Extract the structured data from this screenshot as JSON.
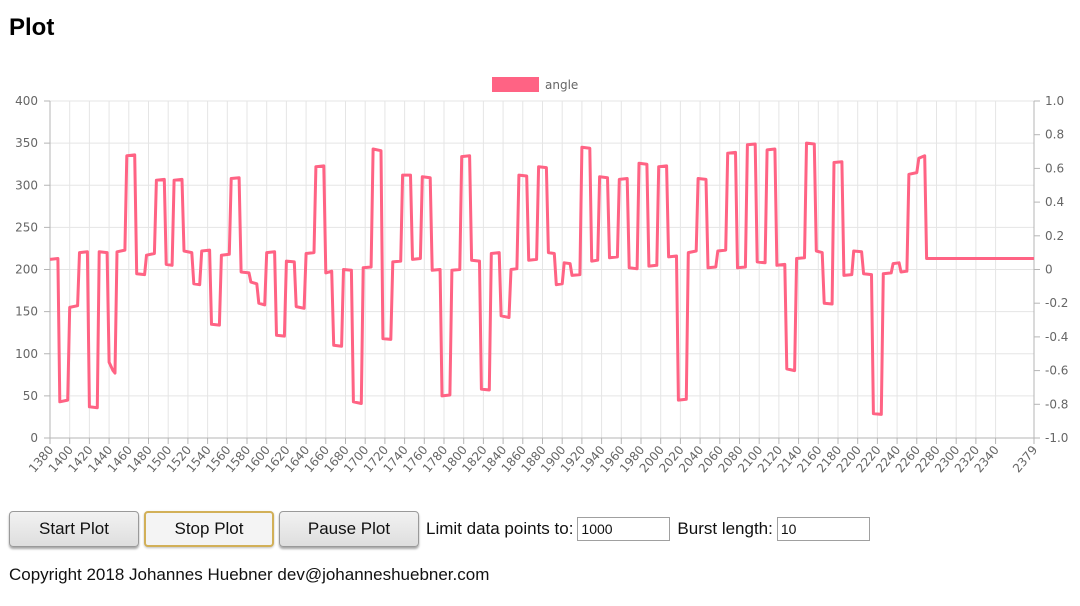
{
  "page": {
    "title": "Plot",
    "copyright": "Copyright 2018 Johannes Huebner dev@johanneshuebner.com"
  },
  "controls": {
    "start_label": "Start Plot",
    "stop_label": "Stop Plot",
    "pause_label": "Pause Plot",
    "limit_label": "Limit data points to:",
    "limit_value": "1000",
    "burst_label": "Burst length:",
    "burst_value": "10"
  },
  "colors": {
    "series": "#ff6384",
    "grid": "#e5e5e5",
    "axis": "#b5b5b5",
    "tick_text": "#666666"
  },
  "chart_data": {
    "type": "line",
    "legend": [
      "angle"
    ],
    "legend_position": "top-center",
    "grid": true,
    "xlabel": "",
    "ylabel": "",
    "xlim": [
      1380,
      2379
    ],
    "x_ticks": [
      1380,
      1400,
      1420,
      1440,
      1460,
      1480,
      1500,
      1520,
      1540,
      1560,
      1580,
      1600,
      1620,
      1640,
      1660,
      1680,
      1700,
      1720,
      1740,
      1760,
      1780,
      1800,
      1820,
      1840,
      1860,
      1880,
      1900,
      1920,
      1940,
      1960,
      1980,
      2000,
      2020,
      2040,
      2060,
      2080,
      2100,
      2120,
      2140,
      2160,
      2180,
      2200,
      2220,
      2240,
      2260,
      2280,
      2300,
      2320,
      2340,
      2379
    ],
    "y_left": {
      "min": 0,
      "max": 400,
      "ticks": [
        0,
        50,
        100,
        150,
        200,
        250,
        300,
        350,
        400
      ]
    },
    "y_right": {
      "min": -1.0,
      "max": 1.0,
      "ticks": [
        "-1.0",
        "-0.8",
        "-0.6",
        "-0.4",
        "-0.2",
        "0",
        "0.2",
        "0.4",
        "0.6",
        "0.8",
        "1.0"
      ]
    },
    "series": [
      {
        "name": "angle",
        "axis": "left",
        "points": [
          [
            1380,
            212
          ],
          [
            1388,
            213
          ],
          [
            1390,
            43
          ],
          [
            1398,
            45
          ],
          [
            1400,
            155
          ],
          [
            1408,
            157
          ],
          [
            1410,
            220
          ],
          [
            1418,
            221
          ],
          [
            1420,
            37
          ],
          [
            1428,
            36
          ],
          [
            1430,
            221
          ],
          [
            1438,
            220
          ],
          [
            1440,
            90
          ],
          [
            1444,
            80
          ],
          [
            1446,
            77
          ],
          [
            1448,
            221
          ],
          [
            1456,
            223
          ],
          [
            1458,
            335
          ],
          [
            1466,
            336
          ],
          [
            1468,
            195
          ],
          [
            1476,
            194
          ],
          [
            1478,
            217
          ],
          [
            1486,
            219
          ],
          [
            1488,
            306
          ],
          [
            1496,
            307
          ],
          [
            1498,
            206
          ],
          [
            1504,
            205
          ],
          [
            1506,
            306
          ],
          [
            1514,
            307
          ],
          [
            1516,
            222
          ],
          [
            1524,
            220
          ],
          [
            1526,
            183
          ],
          [
            1532,
            182
          ],
          [
            1534,
            222
          ],
          [
            1542,
            223
          ],
          [
            1544,
            135
          ],
          [
            1552,
            134
          ],
          [
            1554,
            217
          ],
          [
            1562,
            218
          ],
          [
            1564,
            308
          ],
          [
            1572,
            309
          ],
          [
            1574,
            197
          ],
          [
            1582,
            196
          ],
          [
            1584,
            185
          ],
          [
            1590,
            183
          ],
          [
            1592,
            160
          ],
          [
            1598,
            158
          ],
          [
            1600,
            220
          ],
          [
            1608,
            221
          ],
          [
            1610,
            122
          ],
          [
            1618,
            121
          ],
          [
            1620,
            210
          ],
          [
            1628,
            209
          ],
          [
            1630,
            156
          ],
          [
            1638,
            154
          ],
          [
            1640,
            219
          ],
          [
            1648,
            220
          ],
          [
            1650,
            322
          ],
          [
            1658,
            323
          ],
          [
            1660,
            196
          ],
          [
            1666,
            198
          ],
          [
            1668,
            110
          ],
          [
            1676,
            109
          ],
          [
            1678,
            200
          ],
          [
            1686,
            199
          ],
          [
            1688,
            43
          ],
          [
            1696,
            41
          ],
          [
            1698,
            202
          ],
          [
            1706,
            203
          ],
          [
            1708,
            343
          ],
          [
            1716,
            341
          ],
          [
            1718,
            118
          ],
          [
            1726,
            117
          ],
          [
            1728,
            209
          ],
          [
            1736,
            210
          ],
          [
            1738,
            312
          ],
          [
            1746,
            312
          ],
          [
            1748,
            212
          ],
          [
            1756,
            213
          ],
          [
            1758,
            310
          ],
          [
            1766,
            309
          ],
          [
            1768,
            199
          ],
          [
            1776,
            200
          ],
          [
            1778,
            50
          ],
          [
            1786,
            51
          ],
          [
            1788,
            199
          ],
          [
            1796,
            200
          ],
          [
            1798,
            334
          ],
          [
            1806,
            335
          ],
          [
            1808,
            211
          ],
          [
            1816,
            210
          ],
          [
            1818,
            58
          ],
          [
            1826,
            57
          ],
          [
            1828,
            219
          ],
          [
            1836,
            220
          ],
          [
            1838,
            145
          ],
          [
            1846,
            143
          ],
          [
            1848,
            200
          ],
          [
            1854,
            201
          ],
          [
            1856,
            312
          ],
          [
            1864,
            311
          ],
          [
            1866,
            211
          ],
          [
            1874,
            212
          ],
          [
            1876,
            322
          ],
          [
            1884,
            321
          ],
          [
            1886,
            220
          ],
          [
            1892,
            219
          ],
          [
            1894,
            182
          ],
          [
            1900,
            183
          ],
          [
            1902,
            208
          ],
          [
            1908,
            207
          ],
          [
            1910,
            193
          ],
          [
            1918,
            194
          ],
          [
            1920,
            345
          ],
          [
            1928,
            344
          ],
          [
            1930,
            210
          ],
          [
            1936,
            211
          ],
          [
            1938,
            310
          ],
          [
            1946,
            309
          ],
          [
            1948,
            214
          ],
          [
            1956,
            215
          ],
          [
            1958,
            307
          ],
          [
            1966,
            308
          ],
          [
            1968,
            202
          ],
          [
            1976,
            201
          ],
          [
            1978,
            326
          ],
          [
            1986,
            325
          ],
          [
            1988,
            204
          ],
          [
            1996,
            205
          ],
          [
            1998,
            322
          ],
          [
            2006,
            323
          ],
          [
            2008,
            215
          ],
          [
            2016,
            216
          ],
          [
            2018,
            45
          ],
          [
            2026,
            46
          ],
          [
            2028,
            220
          ],
          [
            2036,
            222
          ],
          [
            2038,
            308
          ],
          [
            2046,
            307
          ],
          [
            2048,
            202
          ],
          [
            2056,
            203
          ],
          [
            2058,
            222
          ],
          [
            2066,
            223
          ],
          [
            2068,
            338
          ],
          [
            2076,
            339
          ],
          [
            2078,
            202
          ],
          [
            2086,
            203
          ],
          [
            2088,
            348
          ],
          [
            2096,
            349
          ],
          [
            2098,
            209
          ],
          [
            2106,
            208
          ],
          [
            2108,
            342
          ],
          [
            2116,
            343
          ],
          [
            2118,
            205
          ],
          [
            2126,
            206
          ],
          [
            2128,
            82
          ],
          [
            2136,
            80
          ],
          [
            2138,
            213
          ],
          [
            2146,
            214
          ],
          [
            2148,
            350
          ],
          [
            2156,
            349
          ],
          [
            2158,
            222
          ],
          [
            2164,
            220
          ],
          [
            2166,
            160
          ],
          [
            2174,
            159
          ],
          [
            2176,
            327
          ],
          [
            2184,
            328
          ],
          [
            2186,
            193
          ],
          [
            2194,
            194
          ],
          [
            2196,
            222
          ],
          [
            2204,
            221
          ],
          [
            2206,
            195
          ],
          [
            2214,
            194
          ],
          [
            2216,
            29
          ],
          [
            2224,
            28
          ],
          [
            2226,
            195
          ],
          [
            2234,
            196
          ],
          [
            2236,
            207
          ],
          [
            2242,
            208
          ],
          [
            2244,
            197
          ],
          [
            2250,
            198
          ],
          [
            2252,
            313
          ],
          [
            2260,
            315
          ],
          [
            2262,
            332
          ],
          [
            2268,
            335
          ],
          [
            2270,
            213
          ],
          [
            2379,
            213
          ]
        ]
      }
    ]
  }
}
